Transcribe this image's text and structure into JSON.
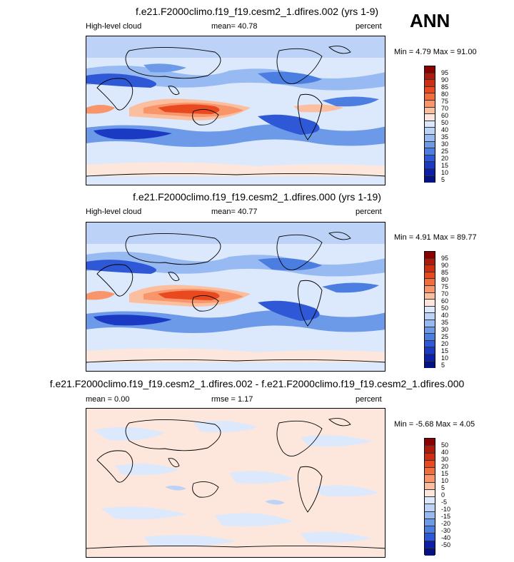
{
  "season": "ANN",
  "panels": [
    {
      "title": "f.e21.F2000climo.f19_f19.cesm2_1.dfires.002 (yrs 1-9)",
      "left": "High-level cloud",
      "center": "mean=  40.78",
      "right": "percent",
      "minmax": "Min =   4.79 Max =  91.00",
      "levels": [
        "95",
        "90",
        "85",
        "80",
        "75",
        "70",
        "60",
        "50",
        "40",
        "35",
        "30",
        "25",
        "20",
        "15",
        "10",
        "5"
      ],
      "colors": [
        "#8b0000",
        "#b01a0a",
        "#d02e13",
        "#e8491f",
        "#f26d3c",
        "#f8956a",
        "#fbbfa0",
        "#fde7dc",
        "#dce8fb",
        "#bcd3f7",
        "#97baf2",
        "#6c9ae9",
        "#4c7ee2",
        "#2f58d6",
        "#1b3ac4",
        "#0c1fa8",
        "#051283"
      ]
    },
    {
      "title": "f.e21.F2000climo.f19_f19.cesm2_1.dfires.000 (yrs 1-19)",
      "left": "High-level cloud",
      "center": "mean=  40.77",
      "right": "percent",
      "minmax": "Min =   4.91 Max =  89.77",
      "levels": [
        "95",
        "90",
        "85",
        "80",
        "75",
        "70",
        "60",
        "50",
        "40",
        "35",
        "30",
        "25",
        "20",
        "15",
        "10",
        "5"
      ],
      "colors": [
        "#8b0000",
        "#b01a0a",
        "#d02e13",
        "#e8491f",
        "#f26d3c",
        "#f8956a",
        "#fbbfa0",
        "#fde7dc",
        "#dce8fb",
        "#bcd3f7",
        "#97baf2",
        "#6c9ae9",
        "#4c7ee2",
        "#2f58d6",
        "#1b3ac4",
        "#0c1fa8",
        "#051283"
      ]
    },
    {
      "title": "f.e21.F2000climo.f19_f19.cesm2_1.dfires.002 - f.e21.F2000climo.f19_f19.cesm2_1.dfires.000",
      "left": "mean =   0.00",
      "center": "rmse =   1.17",
      "right": "percent",
      "minmax": "Min =  -5.68 Max =   4.05",
      "levels": [
        "50",
        "40",
        "30",
        "20",
        "15",
        "10",
        "5",
        "0",
        "-5",
        "-10",
        "-15",
        "-20",
        "-30",
        "-40",
        "-50"
      ],
      "colors": [
        "#8b0000",
        "#b01a0a",
        "#d02e13",
        "#e8491f",
        "#f26d3c",
        "#f8956a",
        "#fbbfa0",
        "#fde7dc",
        "#dce8fb",
        "#bcd3f7",
        "#97baf2",
        "#6c9ae9",
        "#4c7ee2",
        "#2f58d6",
        "#0c1fa8",
        "#051283"
      ]
    }
  ]
}
